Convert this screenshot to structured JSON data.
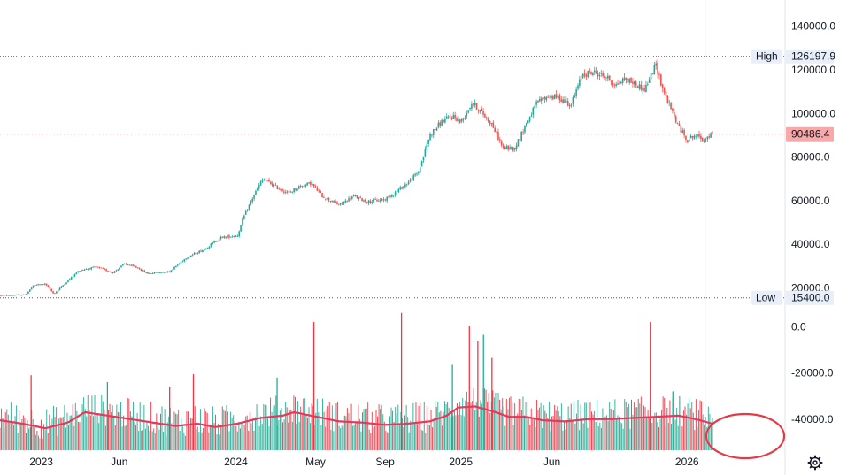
{
  "chart_data": {
    "type": "candlestick",
    "title": "",
    "price_axis": {
      "range": [
        10000,
        148000
      ],
      "ticks": [
        "140000.0",
        "120000.0",
        "100000.0",
        "80000.0",
        "60000.0",
        "40000.0",
        "20000.0"
      ],
      "tick_values": [
        140000,
        120000,
        100000,
        80000,
        60000,
        40000,
        20000
      ]
    },
    "volume_axis": {
      "range": [
        -53500,
        5500
      ],
      "ticks": [
        "0.0",
        "-20000.0",
        "-40000.0"
      ],
      "tick_values": [
        0,
        -20000,
        -40000
      ]
    },
    "x_axis": {
      "labels": [
        "2023",
        "Jun",
        "2024",
        "May",
        "Sep",
        "2025",
        "Jun",
        "2026"
      ],
      "label_positions": [
        0.073,
        0.211,
        0.417,
        0.558,
        0.681,
        0.815,
        0.976,
        1.215
      ]
    },
    "high": {
      "label": "High",
      "value": 126197.9,
      "value_text": "126197.9"
    },
    "low": {
      "label": "Low",
      "value": 15400.0,
      "value_text": "15400.0"
    },
    "last_price": {
      "value": 90486.4,
      "value_text": "90486.4"
    },
    "price_path": [
      [
        0.0,
        16500
      ],
      [
        0.045,
        16800
      ],
      [
        0.06,
        21200
      ],
      [
        0.08,
        21800
      ],
      [
        0.095,
        17200
      ],
      [
        0.12,
        23300
      ],
      [
        0.14,
        28000
      ],
      [
        0.17,
        29500
      ],
      [
        0.2,
        27000
      ],
      [
        0.22,
        31000
      ],
      [
        0.245,
        29000
      ],
      [
        0.26,
        26500
      ],
      [
        0.3,
        27500
      ],
      [
        0.33,
        34000
      ],
      [
        0.36,
        37500
      ],
      [
        0.39,
        43000
      ],
      [
        0.42,
        44000
      ],
      [
        0.43,
        52000
      ],
      [
        0.45,
        63000
      ],
      [
        0.465,
        70000
      ],
      [
        0.49,
        66000
      ],
      [
        0.51,
        63500
      ],
      [
        0.53,
        66500
      ],
      [
        0.55,
        68000
      ],
      [
        0.57,
        62000
      ],
      [
        0.6,
        58000
      ],
      [
        0.625,
        62000
      ],
      [
        0.65,
        59500
      ],
      [
        0.68,
        60500
      ],
      [
        0.7,
        64000
      ],
      [
        0.72,
        68000
      ],
      [
        0.74,
        73000
      ],
      [
        0.76,
        90000
      ],
      [
        0.78,
        96000
      ],
      [
        0.8,
        99000
      ],
      [
        0.815,
        96000
      ],
      [
        0.835,
        105000
      ],
      [
        0.85,
        101000
      ],
      [
        0.87,
        95000
      ],
      [
        0.89,
        84000
      ],
      [
        0.91,
        84000
      ],
      [
        0.93,
        95000
      ],
      [
        0.95,
        105000
      ],
      [
        0.97,
        108000
      ],
      [
        0.99,
        107000
      ],
      [
        1.01,
        104000
      ],
      [
        1.03,
        118000
      ],
      [
        1.05,
        119000
      ],
      [
        1.07,
        117000
      ],
      [
        1.09,
        113000
      ],
      [
        1.105,
        116000
      ],
      [
        1.12,
        114000
      ],
      [
        1.14,
        111000
      ],
      [
        1.16,
        122500
      ],
      [
        1.17,
        113000
      ],
      [
        1.18,
        106000
      ],
      [
        1.2,
        94000
      ],
      [
        1.215,
        88000
      ],
      [
        1.23,
        90000
      ],
      [
        1.245,
        88000
      ],
      [
        1.26,
        90486
      ]
    ],
    "volume_ma_path": [
      [
        0.0,
        -40500
      ],
      [
        0.04,
        -42000
      ],
      [
        0.08,
        -44000
      ],
      [
        0.12,
        -41500
      ],
      [
        0.15,
        -37000
      ],
      [
        0.19,
        -38500
      ],
      [
        0.23,
        -40000
      ],
      [
        0.27,
        -41500
      ],
      [
        0.31,
        -43000
      ],
      [
        0.35,
        -42000
      ],
      [
        0.38,
        -43500
      ],
      [
        0.42,
        -42000
      ],
      [
        0.46,
        -39500
      ],
      [
        0.5,
        -38500
      ],
      [
        0.52,
        -37000
      ],
      [
        0.56,
        -39000
      ],
      [
        0.6,
        -41000
      ],
      [
        0.64,
        -41500
      ],
      [
        0.68,
        -42500
      ],
      [
        0.72,
        -42000
      ],
      [
        0.76,
        -41000
      ],
      [
        0.79,
        -38500
      ],
      [
        0.81,
        -35000
      ],
      [
        0.84,
        -34500
      ],
      [
        0.87,
        -36500
      ],
      [
        0.9,
        -39000
      ],
      [
        0.93,
        -39000
      ],
      [
        0.96,
        -40500
      ],
      [
        1.0,
        -41000
      ],
      [
        1.04,
        -40000
      ],
      [
        1.08,
        -40000
      ],
      [
        1.12,
        -39500
      ],
      [
        1.16,
        -39000
      ],
      [
        1.2,
        -38500
      ],
      [
        1.23,
        -40000
      ],
      [
        1.26,
        -42000
      ]
    ],
    "volume_spikes": [
      [
        0.055,
        -21000
      ],
      [
        0.19,
        -24000
      ],
      [
        0.3,
        -26000
      ],
      [
        0.342,
        -20500
      ],
      [
        0.49,
        -22000
      ],
      [
        0.555,
        2000
      ],
      [
        0.71,
        6000
      ],
      [
        0.8,
        -16500
      ],
      [
        0.83,
        300
      ],
      [
        0.845,
        -6000
      ],
      [
        0.855,
        -3500
      ],
      [
        0.87,
        -13500
      ],
      [
        1.15,
        2000
      ],
      [
        1.19,
        -28000
      ]
    ],
    "annotation": {
      "type": "ellipse",
      "color": "#e53945",
      "target": "right edge of volume pane"
    }
  },
  "colors": {
    "up": "#26a69a",
    "down": "#ef5350",
    "volume_ma": "#e8375b",
    "volume_up": "#22ab94",
    "volume_down": "#f23645",
    "axis_text": "#131722",
    "grid_dotted": "#555555",
    "last_price_tag": "#f7a9a9",
    "hl_tag": "#e9eff8",
    "annotation": "#e53945"
  },
  "icons": [
    "settings-gear-icon"
  ]
}
